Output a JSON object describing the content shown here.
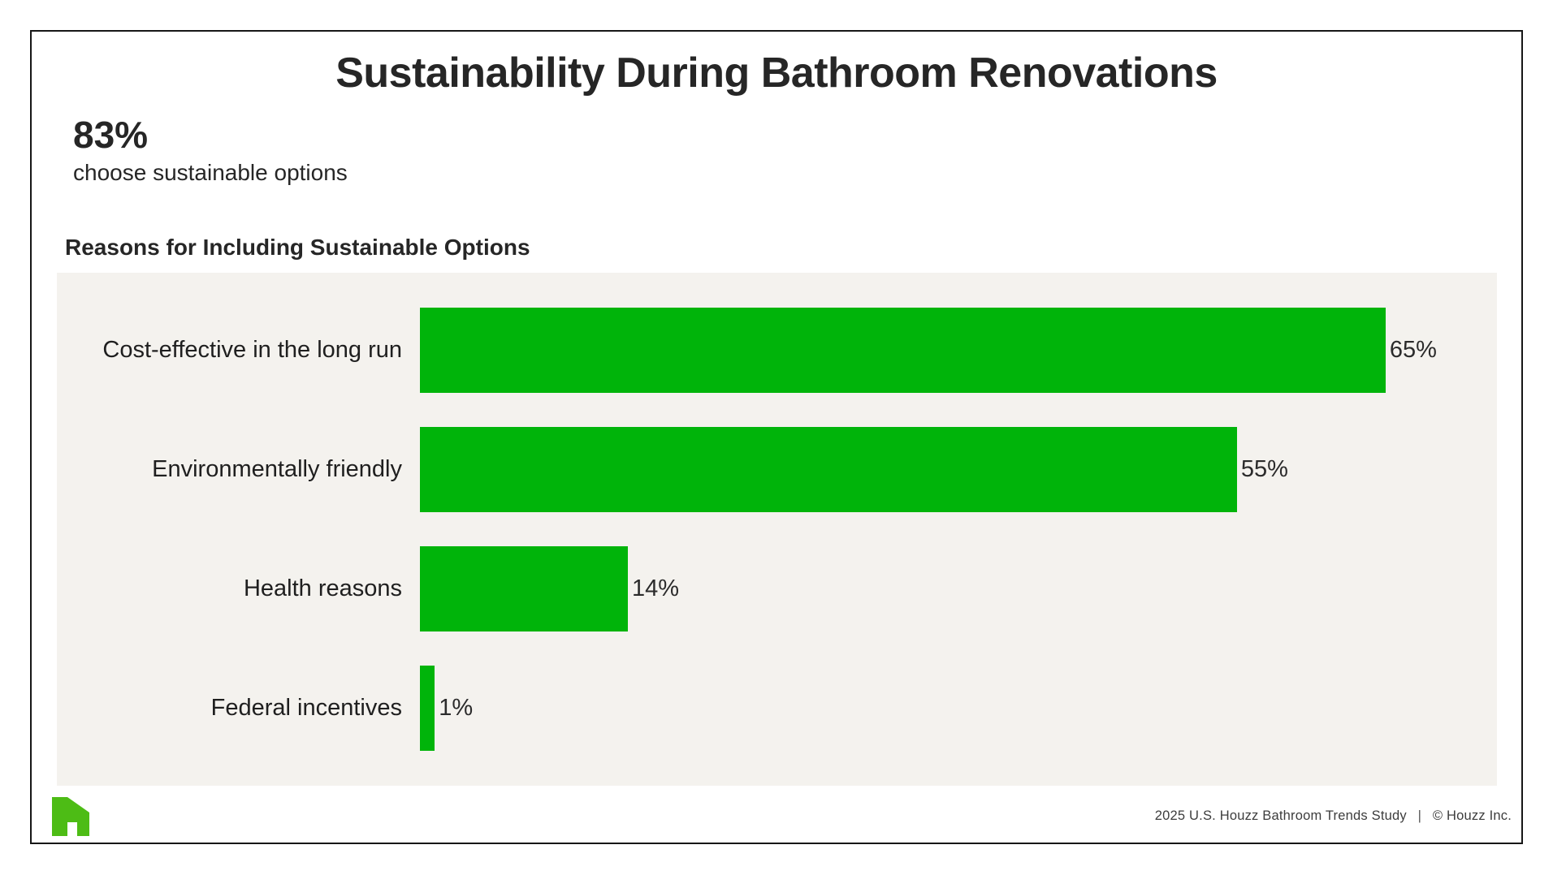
{
  "title": "Sustainability During Bathroom Renovations",
  "stat": {
    "value": "83%",
    "caption": "choose sustainable options"
  },
  "chart_heading": "Reasons for Including Sustainable Options",
  "chart_data": {
    "type": "bar",
    "orientation": "horizontal",
    "title": "Reasons for Including Sustainable Options",
    "categories": [
      "Cost-effective in the long run",
      "Environmentally friendly",
      "Health reasons",
      "Federal incentives"
    ],
    "values": [
      65,
      55,
      14,
      1
    ],
    "value_labels": [
      "65%",
      "55%",
      "14%",
      "1%"
    ],
    "xlabel": "",
    "ylabel": "",
    "xlim": [
      0,
      72.5
    ],
    "grid": false,
    "legend": false,
    "bar_color": "#00b40a",
    "panel_background": "#f4f2ee",
    "value_label_position": "outside-end"
  },
  "footer": {
    "study": "2025 U.S. Houzz Bathroom Trends Study",
    "divider": "|",
    "copyright": "© Houzz Inc.",
    "logo_icon": "houzz-logo"
  },
  "colors": {
    "bar_green": "#00b40a",
    "logo_green": "#4dbc15",
    "panel_gray": "#f4f2ee",
    "border_black": "#161616",
    "text_dark": "#262626"
  }
}
